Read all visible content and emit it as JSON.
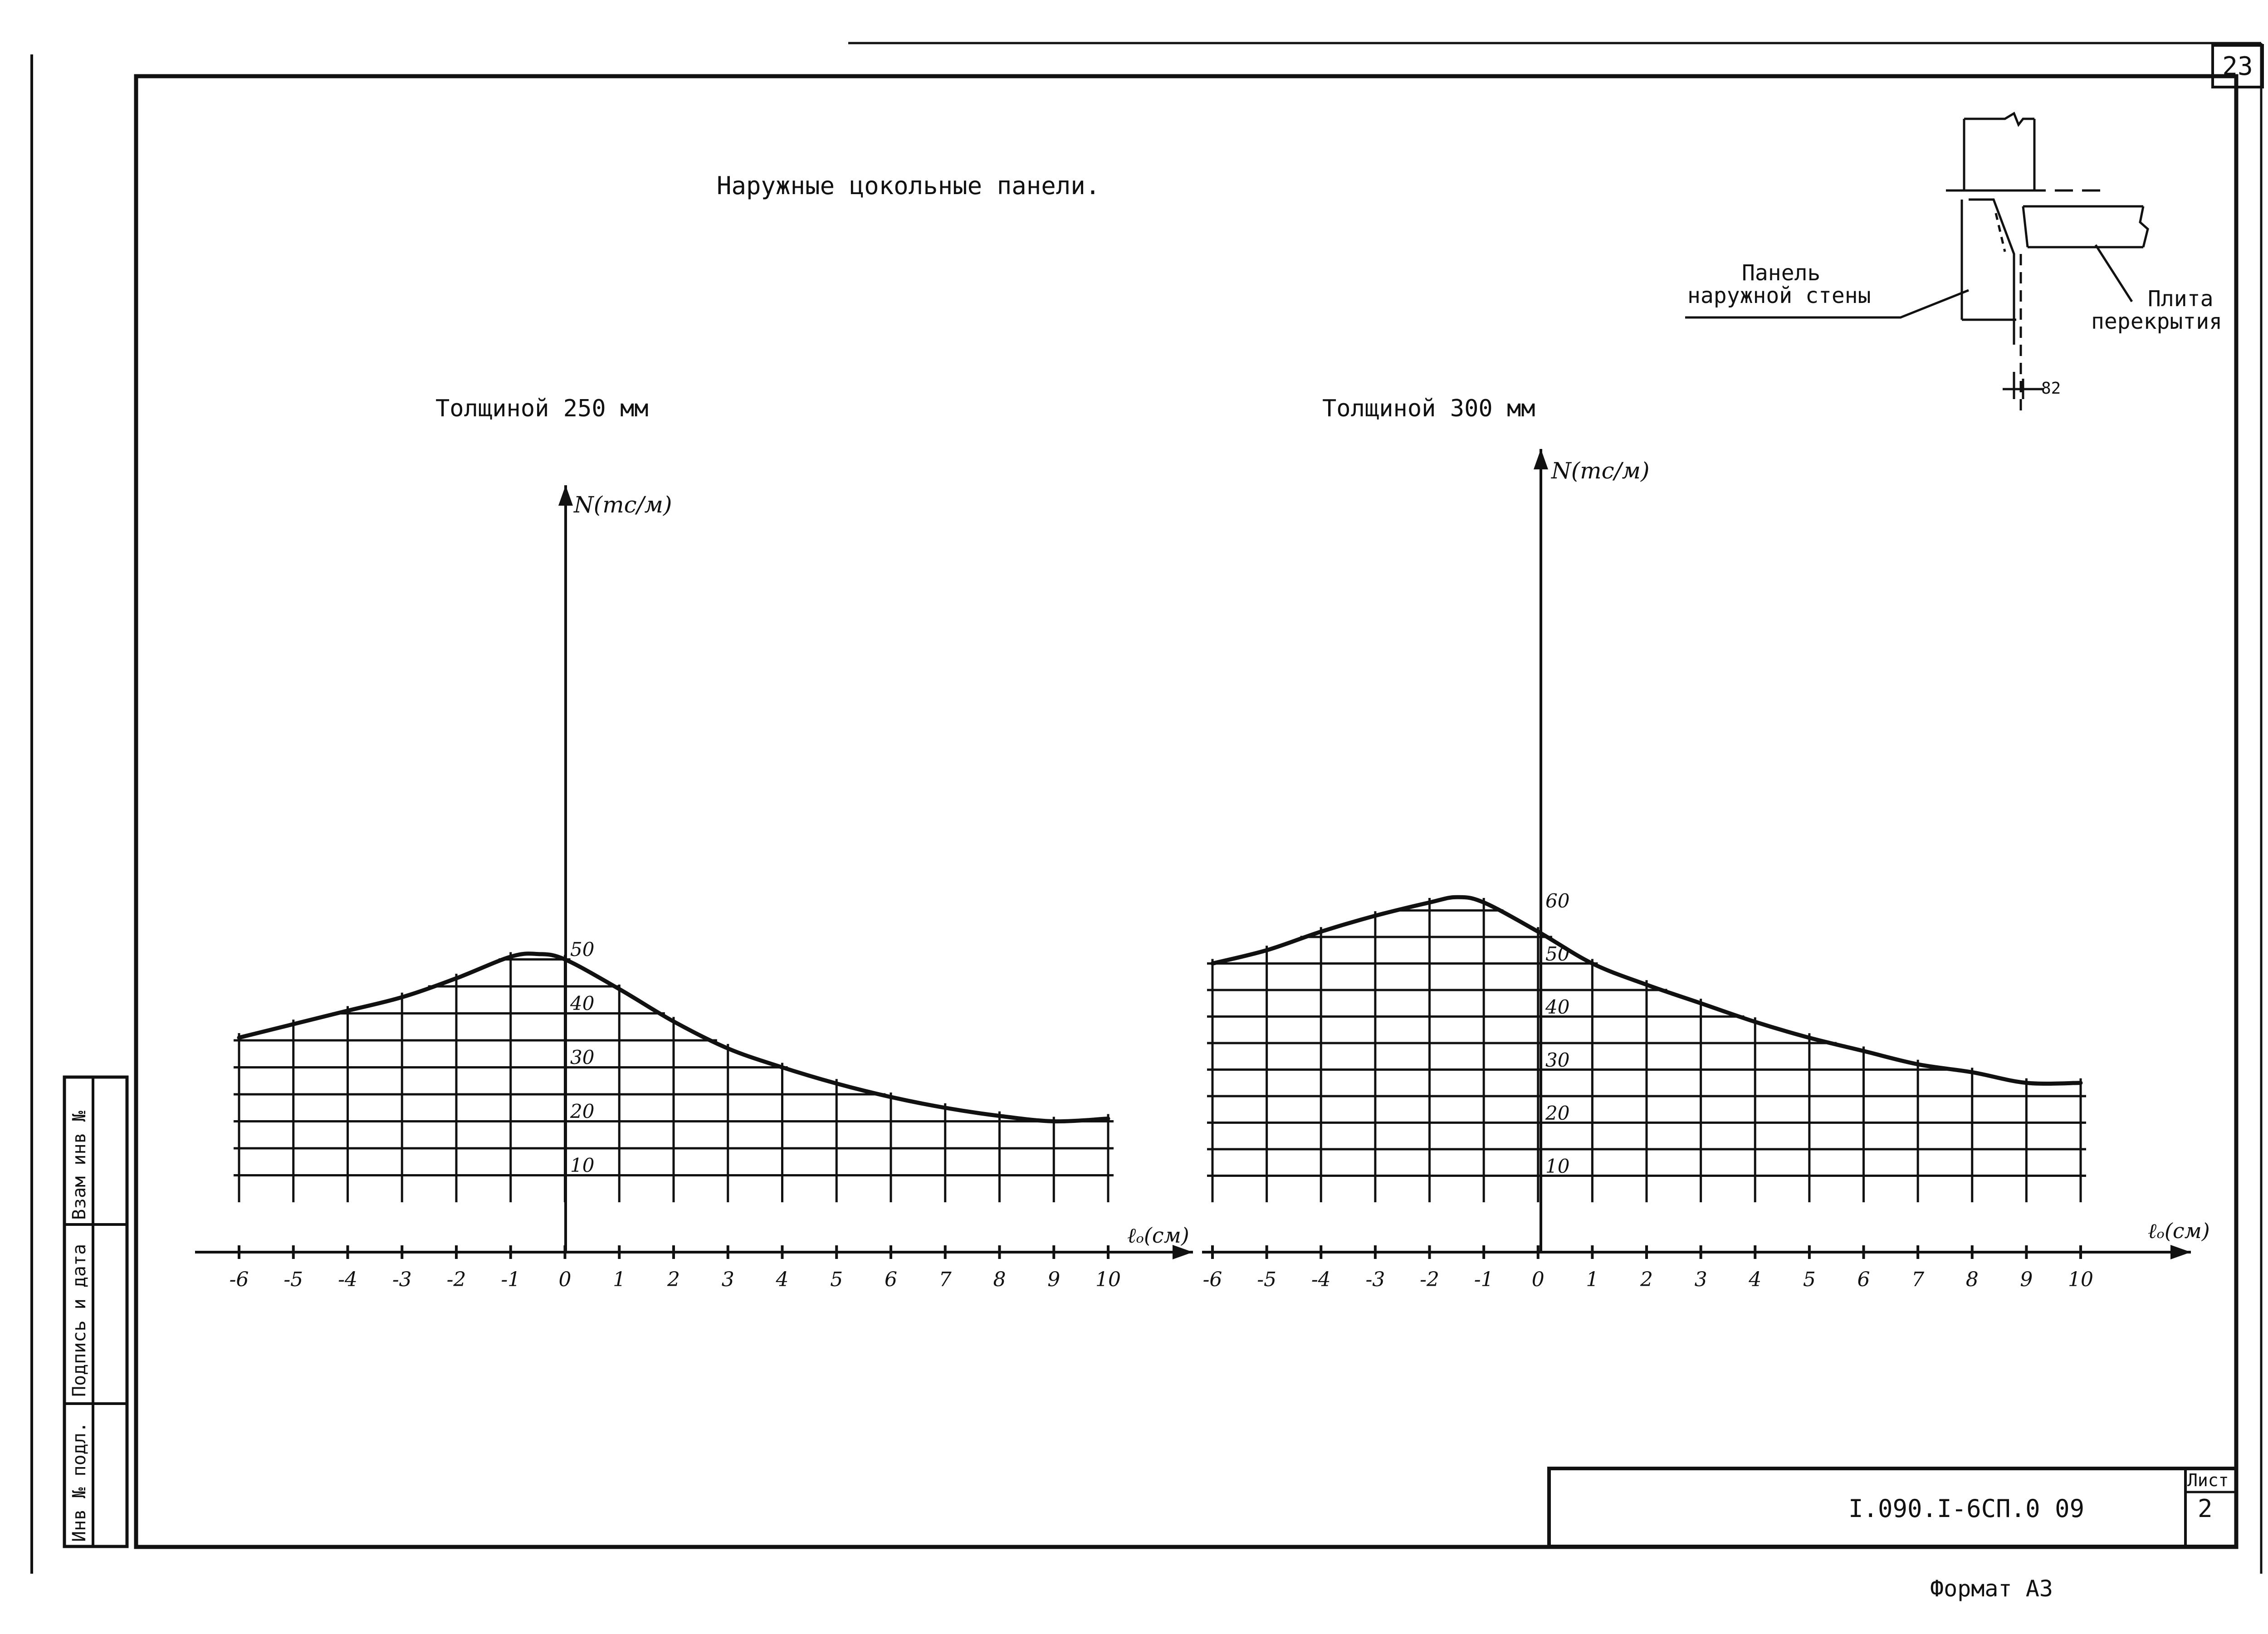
{
  "page": {
    "title": "Наружные цокольные панели.",
    "sheet_corner_number": "23",
    "format_label": "Формат  А3",
    "document_code": "I.090.I-6СП.0   09",
    "sheet_label": "Лист",
    "sheet_number": "2",
    "side_stamp": [
      "Инв № подл.",
      "Подпись и дата",
      "Взам инв №"
    ]
  },
  "detail": {
    "label_wall": [
      "Панель",
      "наружной стены"
    ],
    "label_slab": [
      "Плита",
      "перекрытия"
    ],
    "dimension": "82"
  },
  "chart_data": [
    {
      "type": "line",
      "title": "Толщиной 250 мм",
      "xlabel": "ℓₒ(см)",
      "ylabel": "N(тс/м)",
      "x_tick_labels": [
        "-6",
        "-5",
        "-4",
        "-3",
        "-2",
        "-1",
        "0",
        "1",
        "2",
        "3",
        "4",
        "5",
        "6",
        "7",
        "8",
        "9",
        "10"
      ],
      "y_tick_labels": [
        "10",
        "20",
        "30",
        "40",
        "50"
      ],
      "y_ticks": [
        10,
        20,
        30,
        40,
        50
      ],
      "xlim": [
        -6,
        10
      ],
      "ylim": [
        0,
        68
      ],
      "grid": true,
      "series": [
        {
          "x": [
            -6,
            -5,
            -4,
            -3,
            -2,
            -1,
            -0.5,
            0,
            1,
            2,
            3,
            4,
            5,
            6,
            7,
            8,
            9,
            10
          ],
          "values": [
            30.5,
            33,
            35.5,
            38,
            41.5,
            45.5,
            46,
            45,
            39.5,
            33.5,
            28.5,
            25,
            22,
            19.5,
            17.5,
            16,
            15,
            15.5
          ]
        }
      ]
    },
    {
      "type": "line",
      "title": "Толщиной 300 мм",
      "xlabel": "ℓₒ(см)",
      "ylabel": "N(тс/м)",
      "x_tick_labels": [
        "-6",
        "-5",
        "-4",
        "-3",
        "-2",
        "-1",
        "0",
        "1",
        "2",
        "3",
        "4",
        "5",
        "6",
        "7",
        "8",
        "9",
        "10"
      ],
      "y_tick_labels": [
        "10",
        "20",
        "30",
        "40",
        "50",
        "60"
      ],
      "y_ticks": [
        10,
        20,
        30,
        40,
        50,
        60
      ],
      "xlim": [
        -6,
        10
      ],
      "ylim": [
        0,
        75
      ],
      "grid": true,
      "series": [
        {
          "x": [
            -6,
            -5,
            -4,
            -3,
            -2,
            -1.5,
            -1,
            0,
            1,
            2,
            3,
            4,
            5,
            6,
            7,
            8,
            9,
            10
          ],
          "values": [
            45,
            47.5,
            51,
            54,
            56.5,
            57.5,
            56.5,
            51,
            45,
            41,
            37.5,
            34,
            31,
            28.5,
            26,
            24.5,
            22.5,
            22.5
          ]
        }
      ]
    }
  ]
}
